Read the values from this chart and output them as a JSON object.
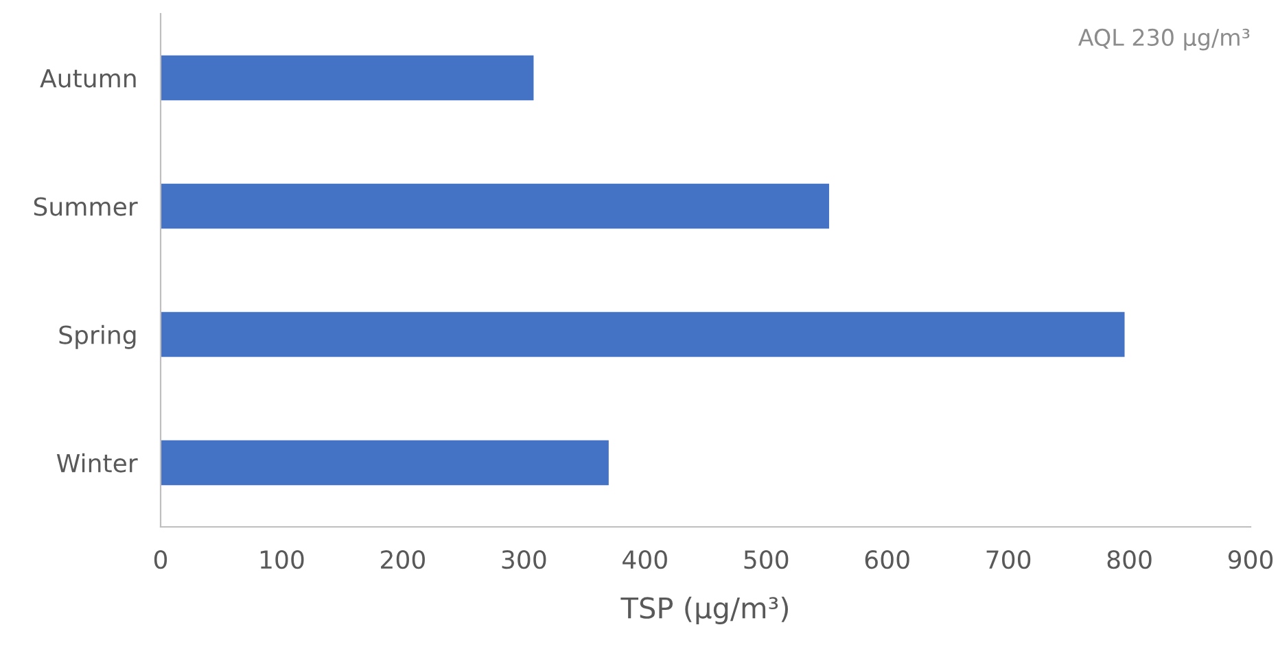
{
  "chart_data": {
    "type": "bar",
    "orientation": "horizontal",
    "categories": [
      "Autumn",
      "Summer",
      "Spring",
      "Winter"
    ],
    "values": [
      308,
      552,
      796,
      370
    ],
    "color": "#4472c4",
    "xlabel": "TSP (μg/m³)",
    "xlim": [
      0,
      900
    ],
    "xticks": [
      0,
      100,
      200,
      300,
      400,
      500,
      600,
      700,
      800,
      900
    ],
    "grid": false,
    "annotations": [
      "AQL 230 μg/m³"
    ]
  }
}
